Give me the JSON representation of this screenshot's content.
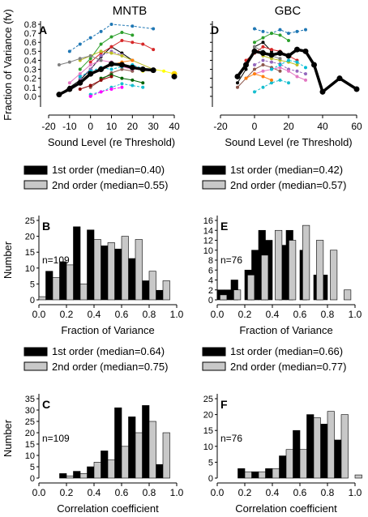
{
  "figure": {
    "col_titles": [
      "MNTB",
      "GBC"
    ]
  },
  "colors": {
    "first_order": "#000000",
    "second_order": "#c8c8c8",
    "mean_line": "#000000",
    "series_palette": [
      "#000000",
      "#1f77b4",
      "#2ca02c",
      "#d62728",
      "#9467bd",
      "#8c564b",
      "#e377c2",
      "#17becf",
      "#bcbd22",
      "#ff7f0e",
      "#00bcd4",
      "#7f7f7f",
      "#ffff00",
      "#ff00ff",
      "#006400",
      "#8b0000"
    ]
  },
  "chart_data": [
    {
      "panel": "A",
      "type": "line",
      "col": 0,
      "ylabel": "Fraction of Variance (fv)",
      "xlabel": "Sound Level (re Threshold)",
      "xlim": [
        -20,
        40
      ],
      "ylim": [
        -0.1,
        0.8
      ],
      "xticks": [
        -20,
        -10,
        0,
        10,
        20,
        30,
        40
      ],
      "yticks": [
        0.0,
        0.1,
        0.2,
        0.3,
        0.4,
        0.5,
        0.6,
        0.7,
        0.8
      ],
      "mean": {
        "x": [
          -15,
          -10,
          -5,
          0,
          5,
          10,
          15,
          20,
          25,
          30
        ],
        "y": [
          0.02,
          0.08,
          0.15,
          0.25,
          0.3,
          0.36,
          0.35,
          0.32,
          0.3,
          0.29
        ]
      },
      "extra_points": [
        {
          "x": 40,
          "y": 0.25
        },
        {
          "x": 40,
          "y": 0.22
        }
      ],
      "series": [
        {
          "x": [
            -15,
            -10,
            -5,
            0,
            5,
            10,
            15,
            20
          ],
          "y": [
            0.02,
            0.1,
            0.18,
            0.3,
            0.44,
            0.55,
            0.48,
            0.4
          ]
        },
        {
          "x": [
            -10,
            -5,
            0,
            5,
            10,
            20,
            30
          ],
          "y": [
            0.5,
            0.58,
            0.65,
            0.72,
            0.8,
            0.78,
            0.75
          ]
        },
        {
          "x": [
            -5,
            0,
            5,
            10,
            15,
            20
          ],
          "y": [
            0.3,
            0.42,
            0.58,
            0.66,
            0.71,
            0.68
          ]
        },
        {
          "x": [
            0,
            5,
            10,
            15,
            20,
            25,
            30
          ],
          "y": [
            0.38,
            0.48,
            0.55,
            0.62,
            0.6,
            0.58,
            0.52
          ]
        },
        {
          "x": [
            -5,
            0,
            5,
            10,
            15
          ],
          "y": [
            0.2,
            0.3,
            0.45,
            0.5,
            0.46
          ]
        },
        {
          "x": [
            0,
            5,
            10,
            15,
            20
          ],
          "y": [
            0.1,
            0.18,
            0.26,
            0.3,
            0.28
          ]
        },
        {
          "x": [
            -10,
            -5,
            0,
            5,
            10,
            15,
            20
          ],
          "y": [
            0.15,
            0.25,
            0.35,
            0.4,
            0.38,
            0.33,
            0.3
          ]
        },
        {
          "x": [
            0,
            5,
            10,
            15,
            20,
            25
          ],
          "y": [
            0.02,
            0.05,
            0.1,
            0.14,
            0.12,
            0.1
          ]
        },
        {
          "x": [
            -5,
            0,
            5,
            10,
            15,
            20,
            30
          ],
          "y": [
            0.4,
            0.45,
            0.5,
            0.48,
            0.45,
            0.4,
            0.3
          ]
        },
        {
          "x": [
            0,
            5,
            10,
            15,
            20
          ],
          "y": [
            0.25,
            0.3,
            0.35,
            0.38,
            0.4
          ]
        },
        {
          "x": [
            -5,
            0,
            5,
            10,
            15,
            20,
            25,
            30
          ],
          "y": [
            0.22,
            0.28,
            0.32,
            0.3,
            0.33,
            0.35,
            0.31,
            0.28
          ]
        },
        {
          "x": [
            -15,
            -10,
            -5,
            0,
            5
          ],
          "y": [
            0.35,
            0.38,
            0.42,
            0.45,
            0.4
          ]
        },
        {
          "x": [
            25,
            30,
            35,
            40
          ],
          "y": [
            0.28,
            0.3,
            0.28,
            0.25
          ]
        },
        {
          "x": [
            0,
            5,
            10,
            15
          ],
          "y": [
            0.0,
            0.05,
            0.08,
            0.1
          ]
        },
        {
          "x": [
            5,
            10,
            15,
            20,
            25
          ],
          "y": [
            0.2,
            0.24,
            0.2,
            0.18,
            0.15
          ]
        },
        {
          "x": [
            -5,
            0,
            5,
            10
          ],
          "y": [
            0.08,
            0.12,
            0.18,
            0.22
          ]
        }
      ]
    },
    {
      "panel": "D",
      "type": "line",
      "col": 1,
      "xlabel": "Sound Level (re Threshold)",
      "xlim": [
        -20,
        60
      ],
      "ylim": [
        -0.1,
        0.8
      ],
      "xticks": [
        -20,
        0,
        20,
        40,
        60
      ],
      "mean": {
        "x": [
          -10,
          -5,
          0,
          5,
          10,
          15,
          20,
          25,
          30,
          35,
          40,
          50,
          60
        ],
        "y": [
          0.22,
          0.35,
          0.5,
          0.48,
          0.46,
          0.48,
          0.45,
          0.52,
          0.5,
          0.35,
          0.05,
          0.2,
          0.08
        ]
      },
      "series": [
        {
          "x": [
            -10,
            -5,
            0,
            5,
            10
          ],
          "y": [
            0.15,
            0.3,
            0.55,
            0.6,
            0.5
          ]
        },
        {
          "x": [
            0,
            5,
            10,
            15,
            20,
            25,
            30
          ],
          "y": [
            0.75,
            0.72,
            0.7,
            0.74,
            0.7,
            0.72,
            0.74
          ]
        },
        {
          "x": [
            0,
            5,
            10,
            15,
            20
          ],
          "y": [
            0.6,
            0.65,
            0.7,
            0.68,
            0.62
          ]
        },
        {
          "x": [
            -5,
            0,
            5,
            10,
            15,
            20,
            25
          ],
          "y": [
            0.4,
            0.48,
            0.55,
            0.52,
            0.5,
            0.45,
            0.4
          ]
        },
        {
          "x": [
            0,
            5,
            10,
            15,
            20,
            25,
            30
          ],
          "y": [
            0.35,
            0.4,
            0.38,
            0.36,
            0.3,
            0.28,
            0.25
          ]
        },
        {
          "x": [
            -10,
            -5,
            0,
            5,
            10,
            15
          ],
          "y": [
            0.1,
            0.2,
            0.3,
            0.35,
            0.32,
            0.28
          ]
        },
        {
          "x": [
            0,
            5,
            10,
            15,
            20,
            25,
            30
          ],
          "y": [
            0.25,
            0.28,
            0.3,
            0.32,
            0.28,
            0.22,
            0.18
          ]
        },
        {
          "x": [
            0,
            5,
            10,
            15,
            20
          ],
          "y": [
            0.05,
            0.1,
            0.15,
            0.18,
            0.15
          ]
        },
        {
          "x": [
            5,
            10,
            15,
            20,
            25
          ],
          "y": [
            0.45,
            0.42,
            0.4,
            0.38,
            0.35
          ]
        },
        {
          "x": [
            -5,
            0,
            5,
            10
          ],
          "y": [
            0.2,
            0.25,
            0.22,
            0.18
          ]
        },
        {
          "x": [
            10,
            15,
            20,
            25,
            30
          ],
          "y": [
            0.3,
            0.35,
            0.4,
            0.38,
            0.32
          ]
        },
        {
          "x": [
            0,
            5,
            10,
            15
          ],
          "y": [
            0.55,
            0.5,
            0.45,
            0.42
          ]
        }
      ]
    },
    {
      "panel": "B",
      "type": "bar",
      "col": 0,
      "ylabel": "Number",
      "xlabel": "Fraction of Variance",
      "legend": [
        "1st order (median=0.40)",
        "2nd order (median=0.55)"
      ],
      "n_label": "n=109",
      "ylim": [
        0,
        25
      ],
      "yticks": [
        0,
        5,
        10,
        15,
        20,
        25
      ],
      "xlim": [
        0,
        1
      ],
      "xticks": [
        "0.0",
        "0.2",
        "0.4",
        "0.6",
        "0.8",
        "1.0"
      ],
      "bin_width": 0.05,
      "first_order": [
        {
          "x": 0.05,
          "y": 9
        },
        {
          "x": 0.15,
          "y": 12
        },
        {
          "x": 0.25,
          "y": 23
        },
        {
          "x": 0.35,
          "y": 22
        },
        {
          "x": 0.45,
          "y": 17
        },
        {
          "x": 0.55,
          "y": 16
        },
        {
          "x": 0.65,
          "y": 13
        },
        {
          "x": 0.75,
          "y": 6
        },
        {
          "x": 0.85,
          "y": 3
        }
      ],
      "second_order": [
        {
          "x": 0.0,
          "y": 1
        },
        {
          "x": 0.1,
          "y": 7
        },
        {
          "x": 0.2,
          "y": 11
        },
        {
          "x": 0.3,
          "y": 5
        },
        {
          "x": 0.4,
          "y": 19
        },
        {
          "x": 0.5,
          "y": 18
        },
        {
          "x": 0.6,
          "y": 20
        },
        {
          "x": 0.7,
          "y": 19
        },
        {
          "x": 0.8,
          "y": 9
        },
        {
          "x": 0.9,
          "y": 6
        }
      ]
    },
    {
      "panel": "E",
      "type": "bar",
      "col": 1,
      "legend": [
        "1st order (median=0.42)",
        "2nd order (median=0.57)"
      ],
      "xlabel": "Fraction of Variance",
      "n_label": "n=76",
      "ylim": [
        0,
        16
      ],
      "yticks": [
        0,
        2,
        4,
        6,
        8,
        10,
        12,
        14,
        16
      ],
      "xlim": [
        0,
        1
      ],
      "xticks": [
        "0.0",
        "0.2",
        "0.4",
        "0.6",
        "0.8",
        "1.0"
      ],
      "bin_width": 0.05,
      "first_order": [
        {
          "x": 0.0,
          "y": 2
        },
        {
          "x": 0.05,
          "y": 2
        },
        {
          "x": 0.1,
          "y": 4
        },
        {
          "x": 0.2,
          "y": 6
        },
        {
          "x": 0.25,
          "y": 10
        },
        {
          "x": 0.3,
          "y": 14
        },
        {
          "x": 0.35,
          "y": 12
        },
        {
          "x": 0.45,
          "y": 11
        },
        {
          "x": 0.5,
          "y": 14
        },
        {
          "x": 0.6,
          "y": 10
        },
        {
          "x": 0.7,
          "y": 5
        },
        {
          "x": 0.75,
          "y": 5
        }
      ],
      "second_order": [
        {
          "x": 0.02,
          "y": 1
        },
        {
          "x": 0.12,
          "y": 2
        },
        {
          "x": 0.22,
          "y": 5
        },
        {
          "x": 0.32,
          "y": 9
        },
        {
          "x": 0.42,
          "y": 14
        },
        {
          "x": 0.52,
          "y": 12
        },
        {
          "x": 0.62,
          "y": 15
        },
        {
          "x": 0.72,
          "y": 12
        },
        {
          "x": 0.82,
          "y": 10
        },
        {
          "x": 0.92,
          "y": 2
        }
      ]
    },
    {
      "panel": "C",
      "type": "bar",
      "col": 0,
      "ylabel": "Number",
      "xlabel": "Correlation coefficient",
      "legend": [
        "1st order (median=0.64)",
        "2nd order (median=0.75)"
      ],
      "n_label": "n=109",
      "ylim": [
        0,
        35
      ],
      "yticks": [
        0,
        5,
        10,
        15,
        20,
        25,
        30,
        35
      ],
      "xlim": [
        0,
        1
      ],
      "xticks": [
        "0.0",
        "0.2",
        "0.4",
        "0.6",
        "0.8",
        "1.0"
      ],
      "bin_width": 0.05,
      "first_order": [
        {
          "x": 0.15,
          "y": 2
        },
        {
          "x": 0.25,
          "y": 3
        },
        {
          "x": 0.35,
          "y": 5
        },
        {
          "x": 0.45,
          "y": 12
        },
        {
          "x": 0.55,
          "y": 31
        },
        {
          "x": 0.65,
          "y": 27
        },
        {
          "x": 0.75,
          "y": 32
        },
        {
          "x": 0.85,
          "y": 6
        }
      ],
      "second_order": [
        {
          "x": 0.2,
          "y": 1
        },
        {
          "x": 0.3,
          "y": 2
        },
        {
          "x": 0.4,
          "y": 7
        },
        {
          "x": 0.5,
          "y": 8
        },
        {
          "x": 0.6,
          "y": 14
        },
        {
          "x": 0.7,
          "y": 20
        },
        {
          "x": 0.8,
          "y": 25
        },
        {
          "x": 0.9,
          "y": 20
        }
      ]
    },
    {
      "panel": "F",
      "type": "bar",
      "col": 1,
      "legend": [
        "1st order (median=0.66)",
        "2nd order (median=0.77)"
      ],
      "xlabel": "Correlation coefficient",
      "n_label": "n=76",
      "ylim": [
        0,
        25
      ],
      "yticks": [
        0,
        5,
        10,
        15,
        20,
        25
      ],
      "xlim": [
        0,
        1
      ],
      "xticks": [
        "0.0",
        "0.2",
        "0.4",
        "0.6",
        "0.8",
        "1.0"
      ],
      "bin_width": 0.05,
      "first_order": [
        {
          "x": 0.15,
          "y": 3
        },
        {
          "x": 0.25,
          "y": 2
        },
        {
          "x": 0.35,
          "y": 3
        },
        {
          "x": 0.45,
          "y": 7
        },
        {
          "x": 0.55,
          "y": 15
        },
        {
          "x": 0.65,
          "y": 20
        },
        {
          "x": 0.75,
          "y": 17
        },
        {
          "x": 0.85,
          "y": 12
        }
      ],
      "second_order": [
        {
          "x": 0.2,
          "y": 2
        },
        {
          "x": 0.3,
          "y": 2
        },
        {
          "x": 0.4,
          "y": 3
        },
        {
          "x": 0.5,
          "y": 9
        },
        {
          "x": 0.6,
          "y": 9
        },
        {
          "x": 0.7,
          "y": 19
        },
        {
          "x": 0.8,
          "y": 21
        },
        {
          "x": 0.9,
          "y": 20
        },
        {
          "x": 1.0,
          "y": 1
        }
      ]
    }
  ]
}
